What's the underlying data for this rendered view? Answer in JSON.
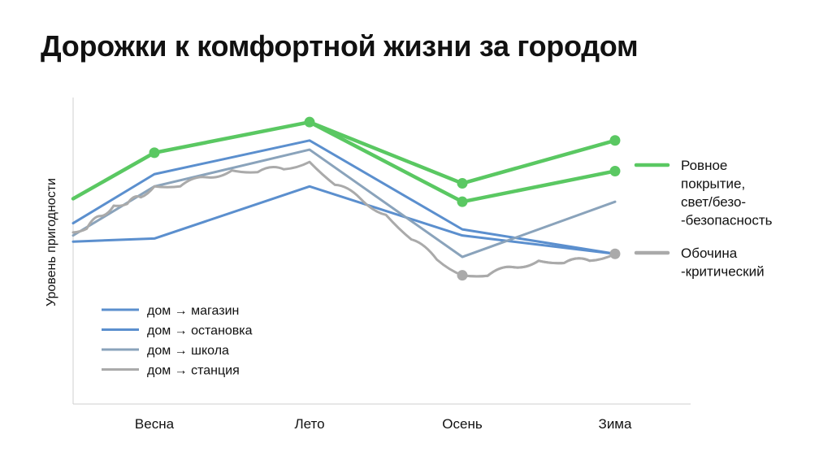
{
  "title": "Дорожки к комфортной жизни за городом",
  "chart_data": {
    "type": "line",
    "title": "Дорожки к комфортной жизни за городом",
    "xlabel": "",
    "ylabel": "Уровень пригодности",
    "categories": [
      "Весна",
      "Лето",
      "Осень",
      "Зима"
    ],
    "ylim": [
      0,
      10
    ],
    "grid": false,
    "legend_position": "bottom-left",
    "series": [
      {
        "name": "дом → магазин",
        "color": "#5b8fce",
        "values": [
          5.4,
          7.1,
          5.5,
          4.9
        ],
        "start": 5.3,
        "style": "straight"
      },
      {
        "name": "дом → остановка",
        "color": "#5b8fce",
        "values": [
          7.5,
          8.6,
          5.7,
          4.9
        ],
        "start": 5.9,
        "style": "straight"
      },
      {
        "name": "дом → школа",
        "color": "#8aa3bb",
        "values": [
          7.1,
          8.3,
          4.8,
          6.6
        ],
        "start": 5.5,
        "style": "straight"
      },
      {
        "name": "дом → станция",
        "color": "#aaaaaa",
        "values": [
          7.1,
          7.9,
          4.2,
          4.9
        ],
        "start": 5.6,
        "style": "wavy"
      }
    ],
    "highlight_series": [
      {
        "label": "Ровное покрытие, свет/безо- -безопасность",
        "color": "#5ac862",
        "values": [
          8.2,
          9.2,
          6.6,
          7.6
        ],
        "start": 6.7,
        "markers": [
          "Весна",
          "Лето",
          "Осень",
          "Зима"
        ]
      },
      {
        "label": "Ровное покрытие, свет/безо- -безопасность",
        "color": "#5ac862",
        "values": [
          null,
          9.2,
          7.2,
          8.6
        ],
        "start": null,
        "markers": [
          "Осень",
          "Зима"
        ]
      },
      {
        "label": "Обочина -критический",
        "color": "#aaaaaa",
        "values": [
          null,
          null,
          4.2,
          4.9
        ],
        "start": null,
        "markers": [
          "Осень",
          "Зима"
        ]
      }
    ],
    "legend": [
      {
        "label": "дом → магазин",
        "color": "#5b8fce"
      },
      {
        "label": "дом → остановка",
        "color": "#5b8fce"
      },
      {
        "label": "дом → школа",
        "color": "#8aa3bb"
      },
      {
        "label": "дом → станция",
        "color": "#aaaaaa"
      }
    ],
    "annotations": [
      {
        "lines": [
          "Ровное",
          "покрытие,",
          "свет/безо-",
          "-безопасность"
        ],
        "color": "#5ac862"
      },
      {
        "lines": [
          "Обочина",
          "-критический"
        ],
        "color": "#aaaaaa"
      }
    ]
  }
}
